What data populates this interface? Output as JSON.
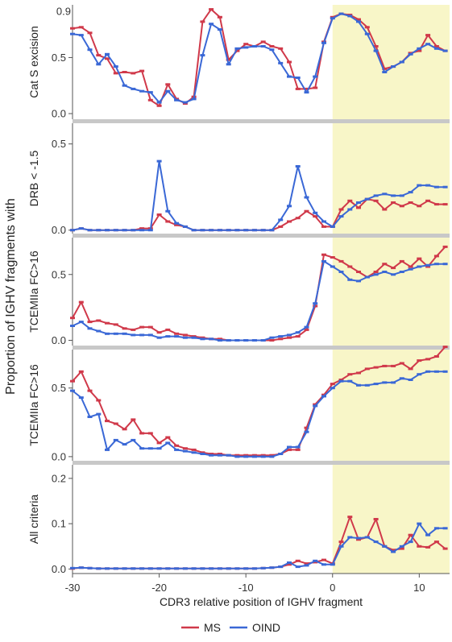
{
  "chart_data": {
    "type": "line",
    "shared_ylabel": "Proportion of IGHV fragments with",
    "xlabel": "CDR3 relative position of IGHV fragment",
    "xlim": [
      -30,
      13.5
    ],
    "xticks": [
      -30,
      -20,
      -10,
      0,
      10
    ],
    "highlight_region": [
      0,
      13.5
    ],
    "colors": {
      "MS": "#d0394a",
      "OIND": "#3a68d6",
      "highlight": "#f8f6c8",
      "divider": "#c8c8c8"
    },
    "legend": {
      "placement": "bottom-center",
      "entries": [
        "MS",
        "OIND"
      ]
    },
    "x": [
      -30,
      -29,
      -28,
      -27,
      -26,
      -25,
      -24,
      -23,
      -22,
      -21,
      -20,
      -19,
      -18,
      -17,
      -16,
      -15,
      -14,
      -13,
      -12,
      -11,
      -10,
      -9,
      -8,
      -7,
      -6,
      -5,
      -4,
      -3,
      -2,
      -1,
      0,
      1,
      2,
      3,
      4,
      5,
      6,
      7,
      8,
      9,
      10,
      11,
      12,
      13
    ],
    "panels": [
      {
        "ylabel": "Cat S excision",
        "ylim": [
          -0.05,
          0.97
        ],
        "yticks": [
          0.0,
          0.5
        ],
        "extra_tick_labels": [
          {
            "value": 0.9,
            "label": "0.9"
          }
        ],
        "series": [
          {
            "name": "MS",
            "values": [
              0.76,
              0.77,
              0.72,
              0.52,
              0.49,
              0.36,
              0.37,
              0.36,
              0.38,
              0.12,
              0.07,
              0.26,
              0.13,
              0.09,
              0.15,
              0.82,
              0.93,
              0.86,
              0.48,
              0.56,
              0.62,
              0.6,
              0.64,
              0.6,
              0.58,
              0.46,
              0.22,
              0.22,
              0.23,
              0.64,
              0.86,
              0.89,
              0.88,
              0.84,
              0.77,
              0.6,
              0.4,
              0.42,
              0.46,
              0.54,
              0.56,
              0.7,
              0.6,
              0.56
            ]
          },
          {
            "name": "OIND",
            "values": [
              0.71,
              0.7,
              0.57,
              0.44,
              0.53,
              0.42,
              0.25,
              0.22,
              0.2,
              0.19,
              0.1,
              0.2,
              0.12,
              0.1,
              0.13,
              0.52,
              0.8,
              0.75,
              0.44,
              0.58,
              0.59,
              0.6,
              0.6,
              0.57,
              0.45,
              0.33,
              0.32,
              0.19,
              0.33,
              0.63,
              0.85,
              0.89,
              0.87,
              0.82,
              0.71,
              0.56,
              0.37,
              0.42,
              0.46,
              0.53,
              0.58,
              0.62,
              0.58,
              0.56
            ]
          }
        ]
      },
      {
        "ylabel": "DRB < -1.5",
        "ylim": [
          -0.02,
          0.62
        ],
        "yticks": [
          0.0,
          0.5
        ],
        "series": [
          {
            "name": "MS",
            "values": [
              0.0,
              0.01,
              0.0,
              0.0,
              0.0,
              0.0,
              0.0,
              0.0,
              0.01,
              0.01,
              0.09,
              0.05,
              0.03,
              0.02,
              0.0,
              0.0,
              0.0,
              0.0,
              0.0,
              0.0,
              0.0,
              0.0,
              0.0,
              0.0,
              0.02,
              0.05,
              0.07,
              0.11,
              0.08,
              0.02,
              0.02,
              0.12,
              0.17,
              0.13,
              0.18,
              0.17,
              0.12,
              0.16,
              0.14,
              0.16,
              0.14,
              0.17,
              0.15,
              0.15
            ]
          },
          {
            "name": "OIND",
            "values": [
              0.0,
              0.01,
              0.0,
              0.0,
              0.0,
              0.0,
              0.0,
              0.0,
              0.0,
              0.0,
              0.4,
              0.11,
              0.04,
              0.02,
              0.0,
              0.0,
              0.0,
              0.0,
              0.0,
              0.0,
              0.0,
              0.0,
              0.0,
              0.0,
              0.06,
              0.14,
              0.37,
              0.19,
              0.1,
              0.05,
              0.02,
              0.08,
              0.12,
              0.16,
              0.18,
              0.2,
              0.21,
              0.2,
              0.2,
              0.22,
              0.26,
              0.26,
              0.25,
              0.25
            ]
          }
        ]
      },
      {
        "ylabel": "TCEMIIa FC>16",
        "ylim": [
          -0.04,
          0.78
        ],
        "yticks": [
          0.0,
          0.5
        ],
        "series": [
          {
            "name": "MS",
            "values": [
              0.17,
              0.29,
              0.14,
              0.15,
              0.13,
              0.12,
              0.09,
              0.08,
              0.1,
              0.1,
              0.06,
              0.08,
              0.05,
              0.04,
              0.03,
              0.02,
              0.01,
              0.01,
              0.0,
              0.0,
              0.0,
              0.0,
              0.0,
              0.0,
              0.01,
              0.02,
              0.03,
              0.08,
              0.26,
              0.65,
              0.63,
              0.6,
              0.56,
              0.52,
              0.48,
              0.52,
              0.58,
              0.55,
              0.6,
              0.56,
              0.62,
              0.56,
              0.64,
              0.71
            ]
          },
          {
            "name": "OIND",
            "values": [
              0.11,
              0.14,
              0.09,
              0.07,
              0.05,
              0.05,
              0.05,
              0.04,
              0.04,
              0.04,
              0.02,
              0.03,
              0.03,
              0.02,
              0.02,
              0.01,
              0.01,
              0.0,
              0.0,
              0.0,
              0.0,
              0.0,
              0.0,
              0.02,
              0.03,
              0.04,
              0.06,
              0.1,
              0.28,
              0.6,
              0.56,
              0.52,
              0.46,
              0.45,
              0.48,
              0.5,
              0.52,
              0.5,
              0.52,
              0.54,
              0.56,
              0.57,
              0.58,
              0.58
            ]
          }
        ]
      },
      {
        "ylabel": "TCEMIIa FC>16",
        "ylim": [
          -0.03,
          0.78
        ],
        "yticks": [
          0.0,
          0.5
        ],
        "series": [
          {
            "name": "MS",
            "values": [
              0.55,
              0.62,
              0.48,
              0.41,
              0.26,
              0.24,
              0.2,
              0.27,
              0.17,
              0.17,
              0.1,
              0.14,
              0.08,
              0.06,
              0.05,
              0.03,
              0.02,
              0.02,
              0.01,
              0.01,
              0.01,
              0.01,
              0.01,
              0.01,
              0.02,
              0.05,
              0.05,
              0.21,
              0.38,
              0.45,
              0.53,
              0.56,
              0.6,
              0.61,
              0.64,
              0.65,
              0.66,
              0.66,
              0.68,
              0.64,
              0.7,
              0.71,
              0.73,
              0.8
            ]
          },
          {
            "name": "OIND",
            "values": [
              0.48,
              0.43,
              0.29,
              0.31,
              0.05,
              0.12,
              0.09,
              0.12,
              0.06,
              0.06,
              0.06,
              0.1,
              0.05,
              0.04,
              0.03,
              0.02,
              0.01,
              0.01,
              0.01,
              0.0,
              0.0,
              0.0,
              0.0,
              0.0,
              0.02,
              0.07,
              0.07,
              0.18,
              0.37,
              0.44,
              0.5,
              0.55,
              0.55,
              0.52,
              0.52,
              0.53,
              0.54,
              0.54,
              0.57,
              0.56,
              0.6,
              0.62,
              0.62,
              0.62
            ]
          }
        ]
      },
      {
        "ylabel": "All criteria",
        "ylim": [
          -0.01,
          0.23
        ],
        "yticks": [
          0.0,
          0.1,
          0.2
        ],
        "series": [
          {
            "name": "MS",
            "values": [
              0.001,
              0.003,
              0.002,
              0.001,
              0.001,
              0.001,
              0.001,
              0.001,
              0.001,
              0.001,
              0.001,
              0.001,
              0.001,
              0.001,
              0.001,
              0.001,
              0.001,
              0.001,
              0.001,
              0.001,
              0.001,
              0.001,
              0.002,
              0.003,
              0.005,
              0.01,
              0.018,
              0.012,
              0.015,
              0.02,
              0.012,
              0.06,
              0.115,
              0.065,
              0.07,
              0.11,
              0.05,
              0.042,
              0.045,
              0.075,
              0.05,
              0.048,
              0.06,
              0.045
            ]
          },
          {
            "name": "OIND",
            "values": [
              0.002,
              0.003,
              0.002,
              0.001,
              0.001,
              0.001,
              0.001,
              0.001,
              0.001,
              0.001,
              0.001,
              0.001,
              0.001,
              0.001,
              0.001,
              0.001,
              0.001,
              0.001,
              0.001,
              0.001,
              0.001,
              0.001,
              0.002,
              0.003,
              0.005,
              0.014,
              0.005,
              0.008,
              0.018,
              0.01,
              0.01,
              0.05,
              0.07,
              0.068,
              0.07,
              0.06,
              0.05,
              0.038,
              0.05,
              0.06,
              0.1,
              0.075,
              0.09,
              0.09
            ]
          }
        ]
      }
    ]
  }
}
